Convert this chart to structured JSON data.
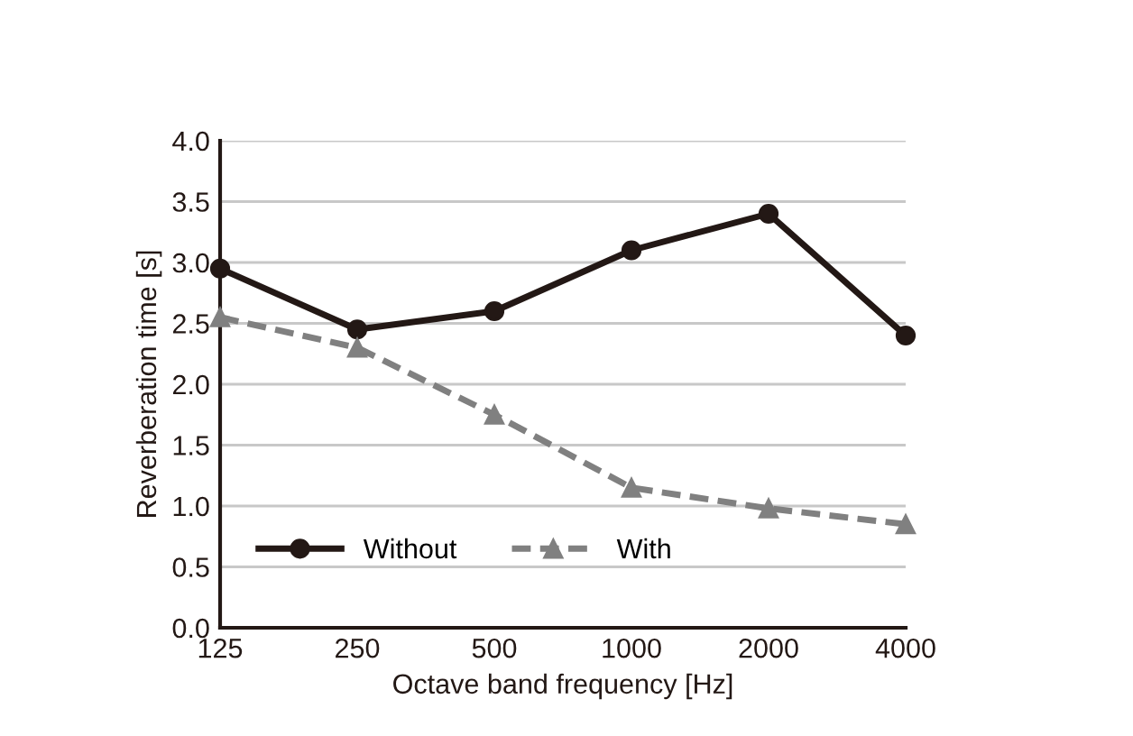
{
  "chart_data": {
    "type": "line",
    "xlabel": "Octave band frequency [Hz]",
    "ylabel": "Reverberation time [s]",
    "categories": [
      "125",
      "250",
      "500",
      "1000",
      "2000",
      "4000"
    ],
    "series": [
      {
        "name": "Without",
        "color": "#231815",
        "values": [
          2.95,
          2.45,
          2.6,
          3.1,
          3.4,
          2.4
        ],
        "marker": "circle",
        "line_style": "solid"
      },
      {
        "name": "With",
        "color": "#808080",
        "values": [
          2.55,
          2.3,
          1.75,
          1.15,
          0.98,
          0.85
        ],
        "marker": "triangle",
        "line_style": "dashed"
      }
    ],
    "ylim": [
      0,
      4
    ],
    "yticks": [
      {
        "value": 0,
        "label": "0.0"
      },
      {
        "value": 0.5,
        "label": "0.5"
      },
      {
        "value": 1,
        "label": "1.0"
      },
      {
        "value": 1.5,
        "label": "1.5"
      },
      {
        "value": 2,
        "label": "2.0"
      },
      {
        "value": 2.5,
        "label": "2.5"
      },
      {
        "value": 3,
        "label": "3.0"
      },
      {
        "value": 3.5,
        "label": "3.5"
      },
      {
        "value": 4,
        "label": "4.0"
      }
    ],
    "grid": "y",
    "legend": "lower left"
  }
}
